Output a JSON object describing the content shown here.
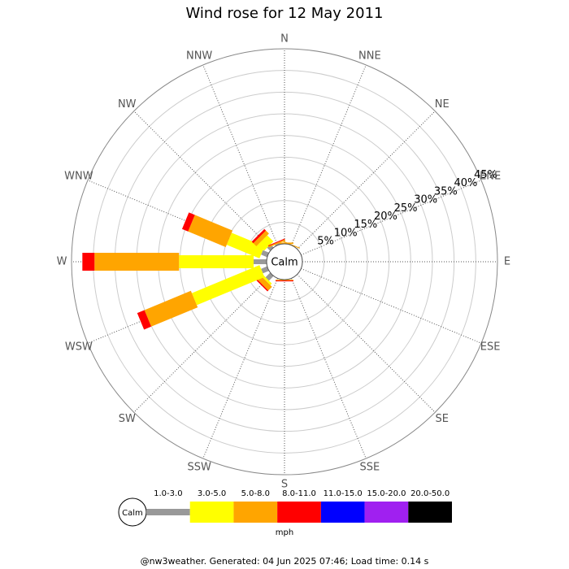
{
  "chart_data": {
    "type": "wind_rose",
    "title": "Wind rose for 12 May 2011",
    "directions": [
      "N",
      "NNE",
      "NE",
      "ENE",
      "E",
      "ESE",
      "SE",
      "SSE",
      "S",
      "SSW",
      "SW",
      "WSW",
      "W",
      "WNW",
      "NW",
      "NNW"
    ],
    "calm_label": "Calm",
    "rlim": [
      0,
      45
    ],
    "rticks": [
      {
        "value": 5,
        "label": "5%"
      },
      {
        "value": 10,
        "label": "10%"
      },
      {
        "value": 15,
        "label": "15%"
      },
      {
        "value": 20,
        "label": "20%"
      },
      {
        "value": 25,
        "label": "25%"
      },
      {
        "value": 30,
        "label": "30%"
      },
      {
        "value": 35,
        "label": "35%"
      },
      {
        "value": 40,
        "label": "40%"
      },
      {
        "value": 45,
        "label": "45%"
      }
    ],
    "series": [
      {
        "name": "1.0-3.0",
        "color": "#999999",
        "values": [
          0,
          0,
          0,
          0,
          0,
          0,
          0,
          0,
          0,
          0,
          1.5,
          1.5,
          3.0,
          1.5,
          1.0,
          0.3
        ]
      },
      {
        "name": "3.0-5.0",
        "color": "#ffff00",
        "values": [
          0,
          0,
          0,
          0,
          0,
          0,
          0,
          0,
          0,
          0,
          0.5,
          16.9,
          17.2,
          8.2,
          2.0,
          0
        ]
      },
      {
        "name": "5.0-8.0",
        "color": "#ffa500",
        "values": [
          0.3,
          0.2,
          0,
          0,
          0,
          0,
          0,
          0,
          0.2,
          0,
          1.2,
          11.6,
          19.5,
          9.4,
          1.0,
          0.3
        ]
      },
      {
        "name": "8.0-11.0",
        "color": "#ff0000",
        "values": [
          0,
          0,
          0,
          0,
          0,
          0,
          0,
          0,
          0.2,
          0,
          0.3,
          1.8,
          2.8,
          1.5,
          0.5,
          0.2
        ]
      },
      {
        "name": "11.0-15.0",
        "color": "#0000ff",
        "values": [
          0,
          0,
          0,
          0,
          0,
          0,
          0,
          0,
          0,
          0,
          0,
          0,
          0,
          0,
          0,
          0
        ]
      },
      {
        "name": "15.0-20.0",
        "color": "#a020f0",
        "values": [
          0,
          0,
          0,
          0,
          0,
          0,
          0,
          0,
          0,
          0,
          0,
          0,
          0,
          0,
          0,
          0
        ]
      },
      {
        "name": "20.0-50.0",
        "color": "#000000",
        "values": [
          0,
          0,
          0,
          0,
          0,
          0,
          0,
          0,
          0,
          0,
          0,
          0,
          0,
          0,
          0,
          0
        ]
      }
    ],
    "legend_unit": "mph",
    "footer": "@nw3weather. Generated: 04 Jun 2025 07:46; Load time: 0.14 s"
  }
}
